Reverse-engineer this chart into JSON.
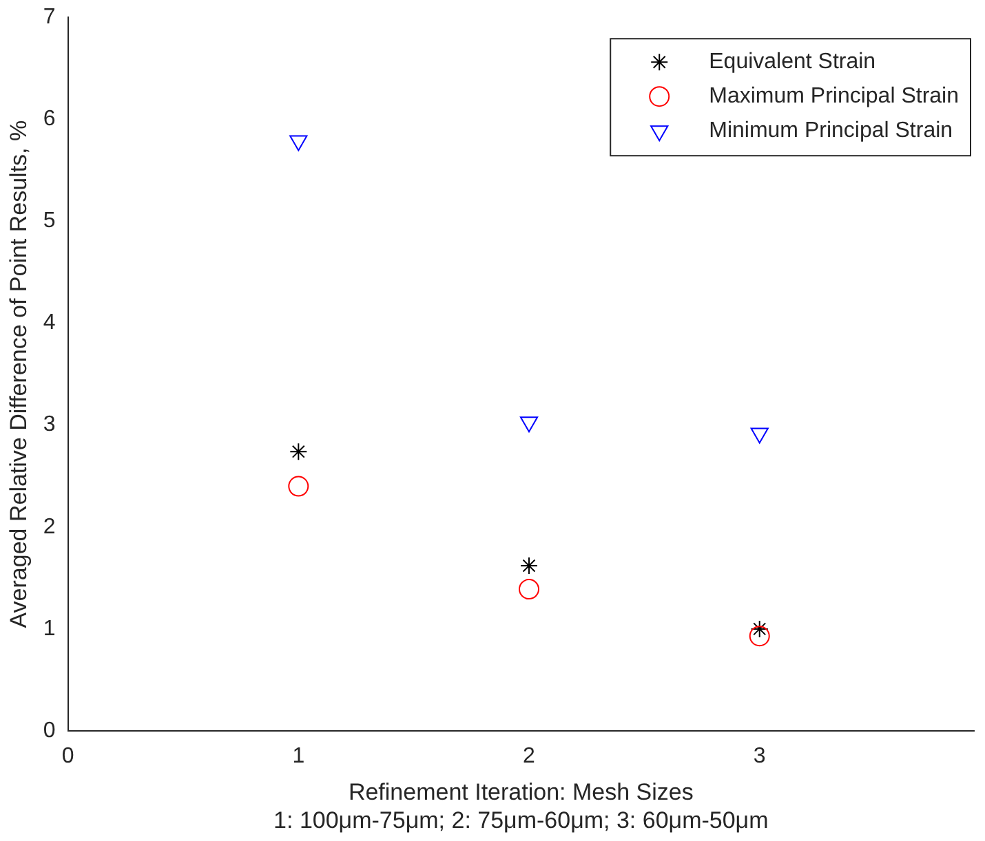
{
  "chart_data": {
    "type": "scatter",
    "xlabel": "Refinement Iteration: Mesh Sizes\n1: 100μm-75μm; 2: 75μm-60μm; 3: 60μm-50μm",
    "ylabel": "Averaged Relative Difference of Point Results, %",
    "xlim": [
      0,
      3.93
    ],
    "xticks": [
      0,
      1,
      2,
      3
    ],
    "ylim": [
      0,
      7
    ],
    "yticks": [
      0,
      1,
      2,
      3,
      4,
      5,
      6,
      7
    ],
    "grid": false,
    "legend": "top right",
    "series": [
      {
        "name": "Equivalent Strain",
        "color": "#000000",
        "marker": "cross",
        "x": [
          1,
          2,
          3
        ],
        "values": [
          2.74,
          1.62,
          1.0
        ]
      },
      {
        "name": "Maximum Principal Strain",
        "color": "#ff0000",
        "marker": "circle",
        "x": [
          1,
          2,
          3
        ],
        "values": [
          2.4,
          1.39,
          0.93
        ]
      },
      {
        "name": "Minimum Principal Strain",
        "color": "#0000ff",
        "marker": "triangle",
        "x": [
          1,
          2,
          3
        ],
        "values": [
          5.79,
          3.03,
          2.92
        ]
      }
    ]
  }
}
